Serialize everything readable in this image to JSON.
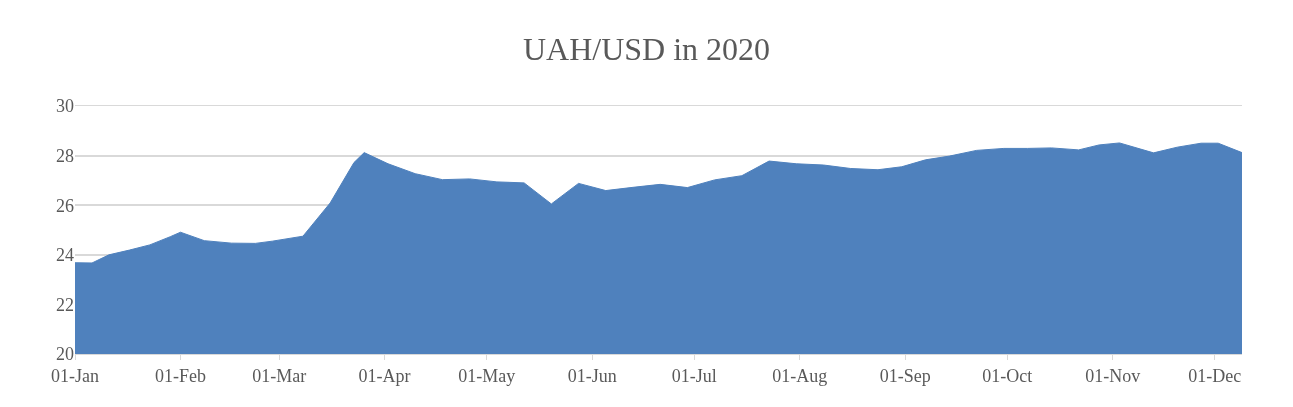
{
  "chart_data": {
    "type": "area",
    "title": "UAH/USD in 2020",
    "x": [
      "2020-01-01",
      "2020-01-06",
      "2020-01-11",
      "2020-01-17",
      "2020-01-23",
      "2020-01-29",
      "2020-02-01",
      "2020-02-08",
      "2020-02-16",
      "2020-02-23",
      "2020-02-28",
      "2020-03-08",
      "2020-03-16",
      "2020-03-23",
      "2020-03-26",
      "2020-04-02",
      "2020-04-10",
      "2020-04-18",
      "2020-04-26",
      "2020-05-04",
      "2020-05-12",
      "2020-05-20",
      "2020-05-28",
      "2020-06-05",
      "2020-06-13",
      "2020-06-21",
      "2020-06-29",
      "2020-07-07",
      "2020-07-15",
      "2020-07-23",
      "2020-07-31",
      "2020-08-08",
      "2020-08-16",
      "2020-08-24",
      "2020-08-31",
      "2020-09-07",
      "2020-09-14",
      "2020-09-22",
      "2020-09-30",
      "2020-10-07",
      "2020-10-14",
      "2020-10-22",
      "2020-10-28",
      "2020-11-03",
      "2020-11-13",
      "2020-11-20",
      "2020-11-27",
      "2020-12-02",
      "2020-12-09"
    ],
    "series": [
      {
        "color": "#4f81bd",
        "values": [
          23.68,
          23.67,
          24.0,
          24.19,
          24.4,
          24.73,
          24.91,
          24.57,
          24.47,
          24.46,
          24.55,
          24.75,
          26.09,
          27.72,
          28.12,
          27.67,
          27.27,
          27.03,
          27.06,
          26.94,
          26.9,
          26.05,
          26.88,
          26.59,
          26.72,
          26.84,
          26.71,
          27.02,
          27.19,
          27.78,
          27.67,
          27.62,
          27.48,
          27.43,
          27.55,
          27.83,
          27.98,
          28.21,
          28.29,
          28.29,
          28.31,
          28.23,
          28.43,
          28.51,
          28.11,
          28.34,
          28.5,
          28.5,
          28.12
        ]
      }
    ],
    "xlim": [
      "2020-01-01",
      "2020-12-09"
    ],
    "xticks": [
      {
        "value": "2020-01-01",
        "label": "01-Jan"
      },
      {
        "value": "2020-02-01",
        "label": "01-Feb"
      },
      {
        "value": "2020-03-01",
        "label": "01-Mar"
      },
      {
        "value": "2020-04-01",
        "label": "01-Apr"
      },
      {
        "value": "2020-05-01",
        "label": "01-May"
      },
      {
        "value": "2020-06-01",
        "label": "01-Jun"
      },
      {
        "value": "2020-07-01",
        "label": "01-Jul"
      },
      {
        "value": "2020-08-01",
        "label": "01-Aug"
      },
      {
        "value": "2020-09-01",
        "label": "01-Sep"
      },
      {
        "value": "2020-10-01",
        "label": "01-Oct"
      },
      {
        "value": "2020-11-01",
        "label": "01-Nov"
      },
      {
        "value": "2020-12-01",
        "label": "01-Dec"
      }
    ],
    "ylim": [
      20,
      30
    ],
    "yticks": [
      20,
      22,
      24,
      26,
      28,
      30
    ],
    "grid": "y"
  }
}
